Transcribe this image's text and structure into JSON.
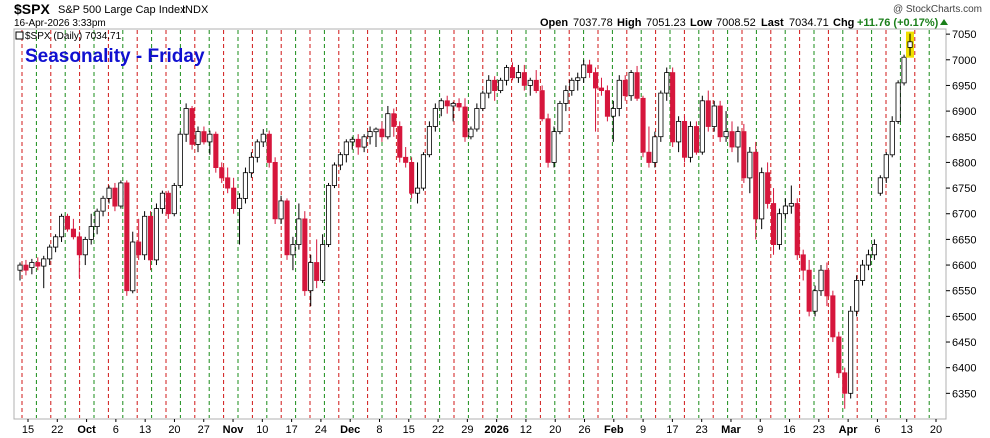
{
  "header": {
    "ticker": "$SPX",
    "name": "S&P 500 Large Cap Index",
    "exchange": "INDX",
    "date": "16-Apr-2026 3:33pm",
    "credit": "@ StockCharts.com",
    "open_label": "Open",
    "open": "7037.78",
    "high_label": "High",
    "high": "7051.23",
    "low_label": "Low",
    "low": "7008.52",
    "last_label": "Last",
    "last": "7034.71",
    "chg_label": "Chg",
    "chg": "+11.76 (+0.17%)",
    "legend": "$SPX (Daily) 7034.71"
  },
  "colors": {
    "up": "#ffffff",
    "down": "#d6163c",
    "friday_line": "#d01818",
    "month_line": "#1a8c1a",
    "title": "#1010d0",
    "highlight": "#f0e000"
  },
  "chart_data": {
    "type": "candlestick",
    "title": "Seasonality - Friday",
    "ylim": [
      6300,
      7060
    ],
    "yticks": [
      6350,
      6400,
      6450,
      6500,
      6550,
      6600,
      6650,
      6700,
      6750,
      6800,
      6850,
      6900,
      6950,
      7000,
      7050
    ],
    "xticks": [
      {
        "label": "15",
        "bold": false
      },
      {
        "label": "22",
        "bold": false
      },
      {
        "label": "Oct",
        "bold": true
      },
      {
        "label": "6",
        "bold": false
      },
      {
        "label": "13",
        "bold": false
      },
      {
        "label": "20",
        "bold": false
      },
      {
        "label": "27",
        "bold": false
      },
      {
        "label": "Nov",
        "bold": true
      },
      {
        "label": "10",
        "bold": false
      },
      {
        "label": "17",
        "bold": false
      },
      {
        "label": "24",
        "bold": false
      },
      {
        "label": "Dec",
        "bold": true
      },
      {
        "label": "8",
        "bold": false
      },
      {
        "label": "15",
        "bold": false
      },
      {
        "label": "22",
        "bold": false
      },
      {
        "label": "29",
        "bold": false
      },
      {
        "label": "2026",
        "bold": true
      },
      {
        "label": "12",
        "bold": false
      },
      {
        "label": "20",
        "bold": false
      },
      {
        "label": "26",
        "bold": false
      },
      {
        "label": "Feb",
        "bold": true
      },
      {
        "label": "9",
        "bold": false
      },
      {
        "label": "17",
        "bold": false
      },
      {
        "label": "23",
        "bold": false
      },
      {
        "label": "Mar",
        "bold": true
      },
      {
        "label": "9",
        "bold": false
      },
      {
        "label": "16",
        "bold": false
      },
      {
        "label": "23",
        "bold": false
      },
      {
        "label": "Apr",
        "bold": true
      },
      {
        "label": "6",
        "bold": false
      },
      {
        "label": "13",
        "bold": false
      },
      {
        "label": "20",
        "bold": false
      }
    ],
    "candles": [
      [
        6590,
        6605,
        6570,
        6600
      ],
      [
        6600,
        6610,
        6580,
        6590
      ],
      [
        6595,
        6612,
        6582,
        6605
      ],
      [
        6605,
        6615,
        6590,
        6598
      ],
      [
        6598,
        6618,
        6555,
        6612
      ],
      [
        6612,
        6640,
        6600,
        6635
      ],
      [
        6635,
        6660,
        6625,
        6655
      ],
      [
        6655,
        6700,
        6645,
        6695
      ],
      [
        6695,
        6700,
        6665,
        6670
      ],
      [
        6670,
        6690,
        6650,
        6655
      ],
      [
        6655,
        6665,
        6575,
        6620
      ],
      [
        6620,
        6655,
        6600,
        6650
      ],
      [
        6650,
        6700,
        6640,
        6675
      ],
      [
        6675,
        6710,
        6660,
        6705
      ],
      [
        6705,
        6735,
        6695,
        6730
      ],
      [
        6730,
        6755,
        6720,
        6750
      ],
      [
        6750,
        6760,
        6705,
        6715
      ],
      [
        6715,
        6765,
        6710,
        6760
      ],
      [
        6760,
        6765,
        6540,
        6550
      ],
      [
        6550,
        6665,
        6545,
        6645
      ],
      [
        6645,
        6690,
        6610,
        6620
      ],
      [
        6620,
        6705,
        6610,
        6695
      ],
      [
        6695,
        6705,
        6590,
        6610
      ],
      [
        6610,
        6720,
        6600,
        6710
      ],
      [
        6710,
        6745,
        6700,
        6740
      ],
      [
        6740,
        6745,
        6690,
        6700
      ],
      [
        6700,
        6760,
        6695,
        6755
      ],
      [
        6755,
        6860,
        6750,
        6855
      ],
      [
        6855,
        6915,
        6840,
        6905
      ],
      [
        6905,
        6910,
        6825,
        6835
      ],
      [
        6835,
        6870,
        6820,
        6860
      ],
      [
        6860,
        6870,
        6835,
        6840
      ],
      [
        6840,
        6862,
        6815,
        6855
      ],
      [
        6855,
        6860,
        6780,
        6790
      ],
      [
        6790,
        6800,
        6760,
        6770
      ],
      [
        6770,
        6790,
        6740,
        6750
      ],
      [
        6750,
        6770,
        6700,
        6710
      ],
      [
        6710,
        6740,
        6640,
        6730
      ],
      [
        6730,
        6790,
        6720,
        6780
      ],
      [
        6780,
        6820,
        6770,
        6810
      ],
      [
        6810,
        6845,
        6800,
        6840
      ],
      [
        6840,
        6865,
        6830,
        6855
      ],
      [
        6855,
        6862,
        6790,
        6800
      ],
      [
        6800,
        6810,
        6680,
        6690
      ],
      [
        6690,
        6735,
        6680,
        6725
      ],
      [
        6725,
        6730,
        6610,
        6620
      ],
      [
        6620,
        6655,
        6590,
        6640
      ],
      [
        6640,
        6720,
        6630,
        6690
      ],
      [
        6690,
        6705,
        6540,
        6550
      ],
      [
        6550,
        6620,
        6520,
        6605
      ],
      [
        6605,
        6650,
        6555,
        6570
      ],
      [
        6570,
        6660,
        6565,
        6640
      ],
      [
        6640,
        6760,
        6635,
        6755
      ],
      [
        6755,
        6800,
        6750,
        6795
      ],
      [
        6795,
        6820,
        6785,
        6815
      ],
      [
        6815,
        6845,
        6800,
        6840
      ],
      [
        6840,
        6850,
        6825,
        6845
      ],
      [
        6845,
        6855,
        6815,
        6830
      ],
      [
        6830,
        6855,
        6820,
        6850
      ],
      [
        6850,
        6870,
        6835,
        6860
      ],
      [
        6860,
        6868,
        6830,
        6865
      ],
      [
        6865,
        6880,
        6840,
        6850
      ],
      [
        6850,
        6910,
        6845,
        6895
      ],
      [
        6895,
        6905,
        6850,
        6870
      ],
      [
        6870,
        6880,
        6800,
        6810
      ],
      [
        6810,
        6830,
        6790,
        6800
      ],
      [
        6800,
        6810,
        6730,
        6740
      ],
      [
        6740,
        6800,
        6720,
        6750
      ],
      [
        6750,
        6820,
        6745,
        6815
      ],
      [
        6815,
        6880,
        6810,
        6870
      ],
      [
        6870,
        6915,
        6860,
        6905
      ],
      [
        6905,
        6925,
        6890,
        6920
      ],
      [
        6920,
        6930,
        6895,
        6910
      ],
      [
        6910,
        6918,
        6880,
        6915
      ],
      [
        6915,
        6925,
        6900,
        6908
      ],
      [
        6908,
        6925,
        6840,
        6850
      ],
      [
        6850,
        6870,
        6845,
        6865
      ],
      [
        6865,
        6915,
        6860,
        6905
      ],
      [
        6905,
        6940,
        6900,
        6935
      ],
      [
        6935,
        6970,
        6925,
        6960
      ],
      [
        6960,
        6968,
        6920,
        6940
      ],
      [
        6940,
        6965,
        6935,
        6960
      ],
      [
        6960,
        6990,
        6950,
        6985
      ],
      [
        6985,
        6995,
        6960,
        6965
      ],
      [
        6965,
        6990,
        6955,
        6975
      ],
      [
        6975,
        6990,
        6940,
        6950
      ],
      [
        6950,
        6965,
        6930,
        6960
      ],
      [
        6960,
        6980,
        6935,
        6940
      ],
      [
        6940,
        6950,
        6880,
        6885
      ],
      [
        6885,
        6895,
        6790,
        6800
      ],
      [
        6800,
        6870,
        6790,
        6860
      ],
      [
        6860,
        6920,
        6855,
        6915
      ],
      [
        6915,
        6950,
        6900,
        6940
      ],
      [
        6940,
        6965,
        6930,
        6960
      ],
      [
        6960,
        6975,
        6940,
        6965
      ],
      [
        6965,
        7000,
        6955,
        6990
      ],
      [
        6990,
        7000,
        6965,
        6975
      ],
      [
        6975,
        6985,
        6860,
        6945
      ],
      [
        6945,
        6965,
        6930,
        6940
      ],
      [
        6940,
        6950,
        6880,
        6890
      ],
      [
        6890,
        6920,
        6840,
        6905
      ],
      [
        6905,
        6970,
        6890,
        6960
      ],
      [
        6960,
        6970,
        6920,
        6930
      ],
      [
        6930,
        6980,
        6920,
        6975
      ],
      [
        6975,
        6988,
        6920,
        6925
      ],
      [
        6925,
        6930,
        6810,
        6820
      ],
      [
        6820,
        6870,
        6790,
        6800
      ],
      [
        6800,
        6860,
        6790,
        6850
      ],
      [
        6850,
        6940,
        6840,
        6935
      ],
      [
        6935,
        6985,
        6920,
        6975
      ],
      [
        6975,
        6985,
        6830,
        6840
      ],
      [
        6840,
        6890,
        6820,
        6880
      ],
      [
        6880,
        6890,
        6800,
        6810
      ],
      [
        6810,
        6880,
        6800,
        6870
      ],
      [
        6870,
        6880,
        6815,
        6820
      ],
      [
        6820,
        6930,
        6815,
        6920
      ],
      [
        6920,
        6940,
        6860,
        6870
      ],
      [
        6870,
        6920,
        6860,
        6910
      ],
      [
        6910,
        6920,
        6840,
        6850
      ],
      [
        6850,
        6900,
        6840,
        6860
      ],
      [
        6860,
        6880,
        6820,
        6830
      ],
      [
        6830,
        6870,
        6800,
        6860
      ],
      [
        6860,
        6875,
        6760,
        6770
      ],
      [
        6770,
        6830,
        6740,
        6820
      ],
      [
        6820,
        6840,
        6650,
        6690
      ],
      [
        6690,
        6790,
        6670,
        6780
      ],
      [
        6780,
        6800,
        6710,
        6720
      ],
      [
        6720,
        6750,
        6620,
        6640
      ],
      [
        6640,
        6710,
        6630,
        6700
      ],
      [
        6700,
        6730,
        6690,
        6715
      ],
      [
        6715,
        6755,
        6700,
        6720
      ],
      [
        6720,
        6730,
        6610,
        6620
      ],
      [
        6620,
        6630,
        6570,
        6590
      ],
      [
        6590,
        6610,
        6500,
        6510
      ],
      [
        6510,
        6560,
        6500,
        6550
      ],
      [
        6550,
        6600,
        6540,
        6590
      ],
      [
        6590,
        6605,
        6520,
        6540
      ],
      [
        6540,
        6550,
        6450,
        6460
      ],
      [
        6460,
        6470,
        6380,
        6390
      ],
      [
        6390,
        6400,
        6320,
        6350
      ],
      [
        6350,
        6520,
        6340,
        6510
      ],
      [
        6510,
        6580,
        6500,
        6570
      ],
      [
        6570,
        6610,
        6560,
        6600
      ],
      [
        6600,
        6630,
        6590,
        6620
      ],
      [
        6620,
        6650,
        6610,
        6640
      ],
      [
        6740,
        6775,
        6735,
        6770
      ],
      [
        6770,
        6820,
        6760,
        6815
      ],
      [
        6815,
        6890,
        6810,
        6880
      ],
      [
        6880,
        6960,
        6875,
        6955
      ],
      [
        6955,
        7010,
        6950,
        7005
      ],
      [
        7024,
        7051,
        7008,
        7035
      ]
    ]
  }
}
